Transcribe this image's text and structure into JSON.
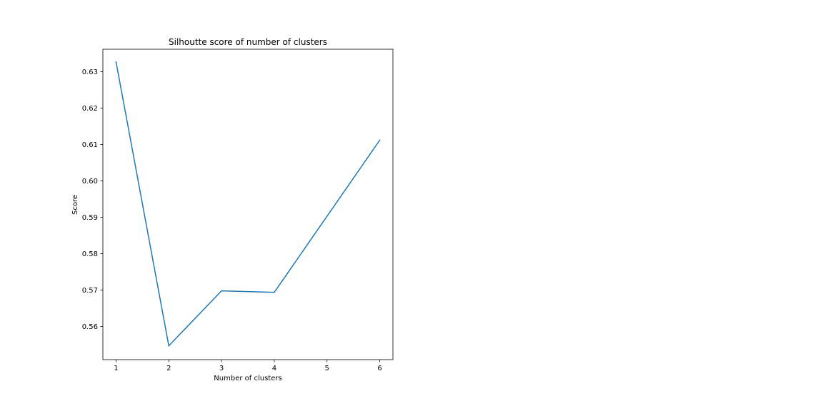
{
  "chart_data": {
    "type": "line",
    "title": "Silhoutte score of number of clusters",
    "xlabel": "Number of clusters",
    "ylabel": "Score",
    "x_ticks": [
      "1",
      "2",
      "3",
      "4",
      "5",
      "6"
    ],
    "y_ticks": [
      "0.56",
      "0.57",
      "0.58",
      "0.59",
      "0.60",
      "0.61",
      "0.62",
      "0.63"
    ],
    "xlim": [
      0.75,
      6.25
    ],
    "ylim": [
      0.5509,
      0.6362
    ],
    "grid": false,
    "series": [
      {
        "x": [
          1,
          2,
          3,
          4,
          6
        ],
        "values": [
          0.6327,
          0.5547,
          0.5698,
          0.5694,
          0.6112
        ],
        "color": "#1f77b4"
      }
    ]
  }
}
